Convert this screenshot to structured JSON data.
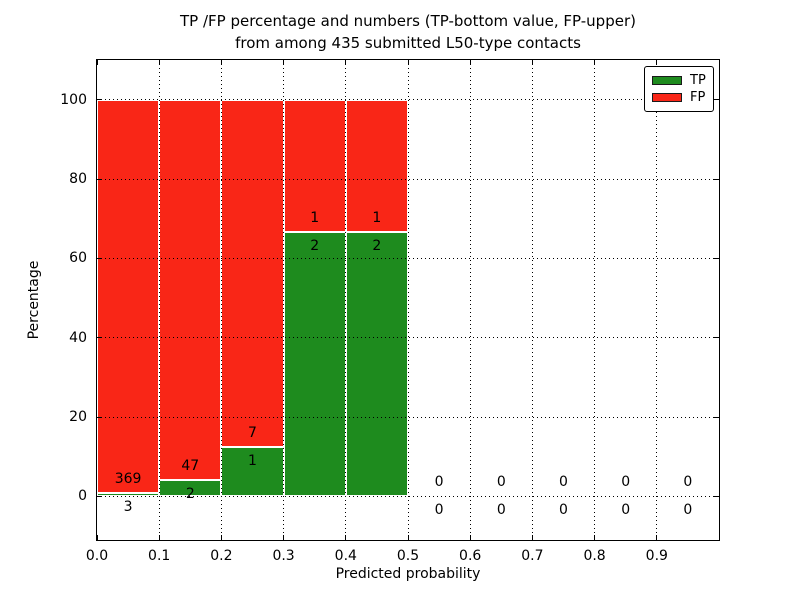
{
  "chart_data": {
    "type": "bar",
    "stacked": true,
    "title": "TP /FP percentage and numbers (TP-bottom value, FP-upper) from among 435 submitted L50-type contacts",
    "title_line1": "TP /FP percentage and numbers (TP-bottom value, FP-upper)",
    "title_line2": "from among 435 submitted L50-type contacts",
    "xlabel": "Predicted probability",
    "ylabel": "Percentage",
    "total_submitted": 435,
    "xlim": [
      0.0,
      1.0
    ],
    "ylim": [
      -11,
      110
    ],
    "xticks": [
      0.0,
      0.1,
      0.2,
      0.3,
      0.4,
      0.5,
      0.6,
      0.7,
      0.8,
      0.9
    ],
    "yticks": [
      0,
      20,
      40,
      60,
      80,
      100
    ],
    "grid_style": "dotted",
    "legend_position": "upper right",
    "legend": [
      {
        "label": "TP",
        "color": "#1e8b1e"
      },
      {
        "label": "FP",
        "color": "#f92617"
      }
    ],
    "count_label_offset_pct": 3.5,
    "bins": [
      {
        "range": "0.0-0.1",
        "x0": 0.0,
        "x1": 0.1,
        "tp": 3,
        "fp": 369,
        "tp_pct": 0.81,
        "fp_pct": 99.19
      },
      {
        "range": "0.1-0.2",
        "x0": 0.1,
        "x1": 0.2,
        "tp": 2,
        "fp": 47,
        "tp_pct": 4.08,
        "fp_pct": 95.92
      },
      {
        "range": "0.2-0.3",
        "x0": 0.2,
        "x1": 0.3,
        "tp": 1,
        "fp": 7,
        "tp_pct": 12.5,
        "fp_pct": 87.5
      },
      {
        "range": "0.3-0.4",
        "x0": 0.3,
        "x1": 0.4,
        "tp": 2,
        "fp": 1,
        "tp_pct": 66.67,
        "fp_pct": 33.33
      },
      {
        "range": "0.4-0.5",
        "x0": 0.4,
        "x1": 0.5,
        "tp": 2,
        "fp": 1,
        "tp_pct": 66.67,
        "fp_pct": 33.33
      },
      {
        "range": "0.5-0.6",
        "x0": 0.5,
        "x1": 0.6,
        "tp": 0,
        "fp": 0,
        "tp_pct": 0,
        "fp_pct": 0
      },
      {
        "range": "0.6-0.7",
        "x0": 0.6,
        "x1": 0.7,
        "tp": 0,
        "fp": 0,
        "tp_pct": 0,
        "fp_pct": 0
      },
      {
        "range": "0.7-0.8",
        "x0": 0.7,
        "x1": 0.8,
        "tp": 0,
        "fp": 0,
        "tp_pct": 0,
        "fp_pct": 0
      },
      {
        "range": "0.8-0.9",
        "x0": 0.8,
        "x1": 0.9,
        "tp": 0,
        "fp": 0,
        "tp_pct": 0,
        "fp_pct": 0
      },
      {
        "range": "0.9-1.0",
        "x0": 0.9,
        "x1": 1.0,
        "tp": 0,
        "fp": 0,
        "tp_pct": 0,
        "fp_pct": 0
      }
    ]
  }
}
